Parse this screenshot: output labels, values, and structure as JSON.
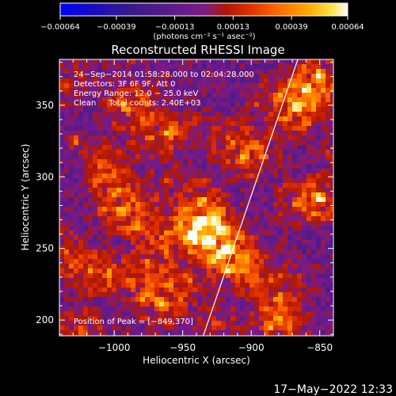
{
  "chart_data": {
    "type": "heatmap",
    "title": "Reconstructed RHESSI Image",
    "xlabel": "Heliocentric X (arcsec)",
    "ylabel": "Heliocentric Y (arcsec)",
    "xlim": [
      -1040,
      -840
    ],
    "ylim": [
      189,
      382
    ],
    "x_ticks": [
      -1000,
      -950,
      -900,
      -850
    ],
    "x_tick_labels": [
      "−1000",
      "−950",
      "−900",
      "−850"
    ],
    "y_ticks": [
      200,
      250,
      300,
      350
    ],
    "y_tick_labels": [
      "200",
      "250",
      "300",
      "350"
    ],
    "colorbar": {
      "range": [
        -0.00064,
        0.00064
      ],
      "tick_values": [
        -0.00064,
        -0.00039,
        -0.00013,
        0.00013,
        0.00039,
        0.00064
      ],
      "tick_labels": [
        "−0.00064",
        "−0.00039",
        "−0.00013",
        "0.00013",
        "0.00039",
        "0.00064"
      ],
      "unit_label": "(photons cm⁻² s⁻¹ asec⁻²)"
    },
    "annotations": [
      "24−Sep−2014 01:58:28.000 to 02:04:28.000",
      "Detectors: 3F 6F 9F, Att 0",
      "Energy Range: 12.0 − 25.0 keV",
      "Clean     Total counts: 2.40E+03"
    ],
    "peak_label": "Position of Peak = [−849,370]",
    "limb_line": {
      "x": [
        -935,
        -866
      ],
      "y": [
        189,
        382
      ]
    },
    "colors": {
      "background": "#000000",
      "limb": "#ffffff",
      "colormap": [
        "#0000ff",
        "#1a0cbf",
        "#3a1a8a",
        "#5a1a8c",
        "#7d1a86",
        "#b01800",
        "#e03000",
        "#ff6a00",
        "#ffa800",
        "#ffe040",
        "#ffffff"
      ]
    }
  },
  "footer": {
    "timestamp": "17−May−2022 12:33"
  }
}
